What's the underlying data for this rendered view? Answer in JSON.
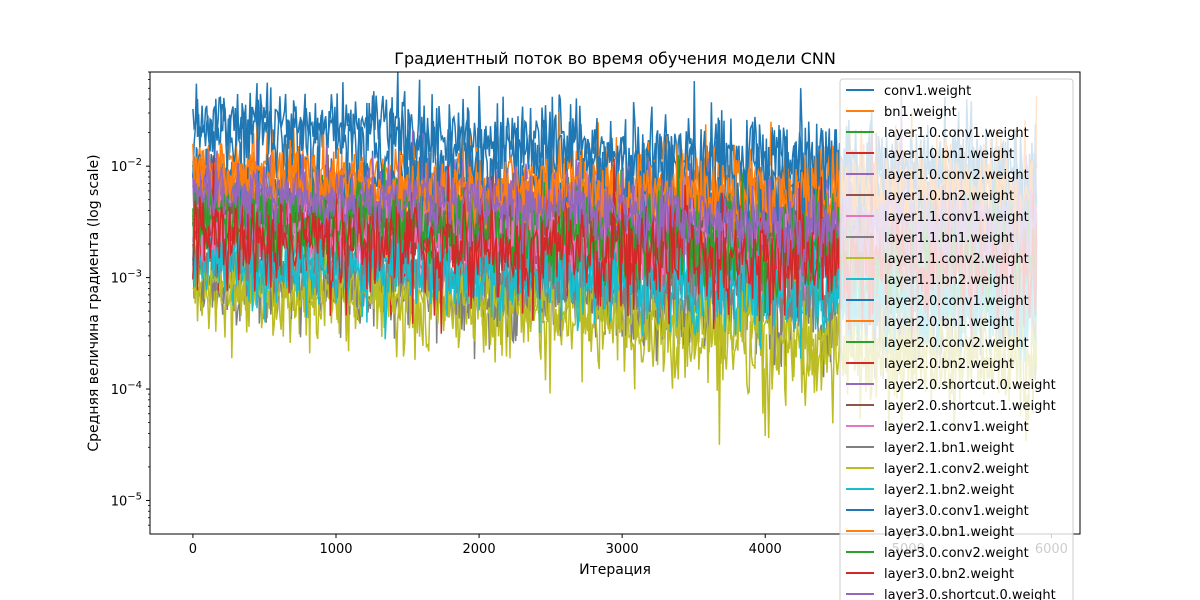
{
  "chart_data": {
    "type": "line",
    "title": "Градиентный поток во время обучения модели CNN",
    "xlabel": "Итерация",
    "ylabel": "Средняя величина градиента (log scale)",
    "x_ticks": [
      0,
      1000,
      2000,
      3000,
      4000,
      5000,
      6000
    ],
    "x_tick_labels": [
      "0",
      "1000",
      "2000",
      "3000",
      "4000",
      "5000",
      "6000"
    ],
    "xlim": [
      -300,
      6200
    ],
    "y_scale": "log",
    "ylim": [
      5e-06,
      0.07
    ],
    "y_ticks": [
      1e-05,
      0.0001,
      0.001,
      0.01
    ],
    "y_tick_labels": [
      {
        "base": "10",
        "exp": "−5"
      },
      {
        "base": "10",
        "exp": "−4"
      },
      {
        "base": "10",
        "exp": "−3"
      },
      {
        "base": "10",
        "exp": "−2"
      }
    ],
    "grid": false,
    "legend_placement": "upper right",
    "x": [
      0,
      500,
      1000,
      1500,
      2000,
      2500,
      3000,
      3500,
      4000,
      4500,
      5000,
      5500,
      5900
    ],
    "series": [
      {
        "name": "conv1.weight",
        "color": "#1f77b4",
        "values": [
          0.025,
          0.025,
          0.022,
          0.02,
          0.016,
          0.018,
          0.012,
          0.014,
          0.011,
          0.012,
          0.009,
          0.009,
          0.008
        ]
      },
      {
        "name": "bn1.weight",
        "color": "#ff7f0e",
        "values": [
          0.011,
          0.009,
          0.008,
          0.007,
          0.006,
          0.007,
          0.006,
          0.007,
          0.008,
          0.007,
          0.007,
          0.006,
          0.006
        ]
      },
      {
        "name": "layer1.0.conv1.weight",
        "color": "#2ca02c",
        "values": [
          0.004,
          0.0035,
          0.003,
          0.003,
          0.0025,
          0.0025,
          0.002,
          0.002,
          0.0018,
          0.0018,
          0.0016,
          0.0016,
          0.0015
        ]
      },
      {
        "name": "layer1.0.bn1.weight",
        "color": "#d62728",
        "values": [
          0.003,
          0.0028,
          0.0026,
          0.0025,
          0.0022,
          0.0022,
          0.002,
          0.002,
          0.0018,
          0.0018,
          0.0017,
          0.0017,
          0.0016
        ]
      },
      {
        "name": "layer1.0.conv2.weight",
        "color": "#9467bd",
        "values": [
          0.005,
          0.0048,
          0.0045,
          0.0045,
          0.004,
          0.0038,
          0.0032,
          0.003,
          0.0028,
          0.0027,
          0.0026,
          0.0025,
          0.0025
        ]
      },
      {
        "name": "layer1.0.bn2.weight",
        "color": "#8c564b",
        "values": [
          0.0035,
          0.0032,
          0.003,
          0.003,
          0.0028,
          0.0027,
          0.0022,
          0.0022,
          0.002,
          0.002,
          0.0019,
          0.0019,
          0.0018
        ]
      },
      {
        "name": "layer1.1.conv1.weight",
        "color": "#e377c2",
        "values": [
          0.003,
          0.0028,
          0.0026,
          0.0025,
          0.0023,
          0.0022,
          0.0019,
          0.0018,
          0.0017,
          0.0016,
          0.0016,
          0.0015,
          0.0015
        ]
      },
      {
        "name": "layer1.1.bn1.weight",
        "color": "#7f7f7f",
        "values": [
          0.0007,
          0.0008,
          0.0008,
          0.0008,
          0.0007,
          0.0007,
          0.0006,
          0.0006,
          0.0005,
          0.0005,
          0.0005,
          0.0005,
          0.0005
        ]
      },
      {
        "name": "layer1.1.conv2.weight",
        "color": "#bcbd22",
        "values": [
          0.0008,
          0.0007,
          0.00065,
          0.0006,
          0.0005,
          0.00045,
          0.0004,
          0.0003,
          0.00025,
          0.00022,
          0.0002,
          0.00018,
          0.00016
        ]
      },
      {
        "name": "layer1.1.bn2.weight",
        "color": "#17becf",
        "values": [
          0.0015,
          0.0014,
          0.0013,
          0.0013,
          0.0012,
          0.0011,
          0.0009,
          0.0008,
          0.0007,
          0.0007,
          0.0006,
          0.0006,
          0.0006
        ]
      },
      {
        "name": "layer2.0.conv1.weight",
        "color": "#1f77b4",
        "values": [
          0.008,
          0.007,
          0.007,
          0.006,
          0.006,
          0.005,
          0.005,
          0.005,
          0.004,
          0.004,
          0.004,
          0.004,
          0.004
        ]
      },
      {
        "name": "layer2.0.bn1.weight",
        "color": "#ff7f0e",
        "values": [
          0.006,
          0.0055,
          0.005,
          0.005,
          0.0045,
          0.0045,
          0.004,
          0.004,
          0.0035,
          0.0035,
          0.0033,
          0.0032,
          0.003
        ]
      },
      {
        "name": "layer2.0.conv2.weight",
        "color": "#2ca02c",
        "values": [
          0.0045,
          0.004,
          0.004,
          0.0038,
          0.0035,
          0.0032,
          0.003,
          0.003,
          0.0028,
          0.0027,
          0.0026,
          0.0025,
          0.0025
        ]
      },
      {
        "name": "layer2.0.bn2.weight",
        "color": "#d62728",
        "values": [
          0.0025,
          0.0024,
          0.0023,
          0.0022,
          0.002,
          0.002,
          0.0018,
          0.0018,
          0.0017,
          0.0016,
          0.0016,
          0.0015,
          0.0015
        ]
      },
      {
        "name": "layer2.0.shortcut.0.weight",
        "color": "#9467bd",
        "values": [
          0.0055,
          0.005,
          0.0048,
          0.0045,
          0.0042,
          0.004,
          0.0035,
          0.0033,
          0.003,
          0.003,
          0.0028,
          0.0028,
          0.0027
        ]
      },
      {
        "name": "layer2.0.shortcut.1.weight",
        "color": "#8c564b",
        "values": [
          0.003,
          0.0028,
          0.0027,
          0.0026,
          0.0024,
          0.0023,
          0.002,
          0.002,
          0.0019,
          0.0018,
          0.0018,
          0.0017,
          0.0017
        ]
      },
      {
        "name": "layer2.1.conv1.weight",
        "color": "#e377c2",
        "values": [
          0.0028,
          0.0026,
          0.0025,
          0.0024,
          0.0022,
          0.0021,
          0.0019,
          0.0018,
          0.0017,
          0.0016,
          0.0016,
          0.0015,
          0.0015
        ]
      },
      {
        "name": "layer2.1.bn1.weight",
        "color": "#7f7f7f",
        "values": [
          0.0013,
          0.0012,
          0.0011,
          0.0011,
          0.001,
          0.001,
          0.0009,
          0.0008,
          0.0008,
          0.0007,
          0.0007,
          0.0007,
          0.0007
        ]
      },
      {
        "name": "layer2.1.conv2.weight",
        "color": "#bcbd22",
        "values": [
          0.0009,
          0.0008,
          0.0007,
          0.00065,
          0.0006,
          0.0005,
          0.00045,
          0.00035,
          0.0003,
          0.00025,
          0.00022,
          0.0002,
          0.00018
        ]
      },
      {
        "name": "layer2.1.bn2.weight",
        "color": "#17becf",
        "values": [
          0.0014,
          0.0013,
          0.0012,
          0.0012,
          0.0011,
          0.001,
          0.0009,
          0.0008,
          0.0007,
          0.0007,
          0.0006,
          0.0006,
          0.0006
        ]
      },
      {
        "name": "layer3.0.conv1.weight",
        "color": "#1f77b4",
        "values": [
          0.02,
          0.02,
          0.018,
          0.016,
          0.013,
          0.014,
          0.01,
          0.011,
          0.009,
          0.009,
          0.008,
          0.008,
          0.007
        ]
      },
      {
        "name": "layer3.0.bn1.weight",
        "color": "#ff7f0e",
        "values": [
          0.009,
          0.008,
          0.007,
          0.006,
          0.0055,
          0.006,
          0.005,
          0.006,
          0.006,
          0.006,
          0.0055,
          0.005,
          0.005
        ]
      },
      {
        "name": "layer3.0.conv2.weight",
        "color": "#2ca02c",
        "values": [
          0.0035,
          0.0032,
          0.003,
          0.0028,
          0.0025,
          0.0024,
          0.002,
          0.002,
          0.0018,
          0.0017,
          0.0016,
          0.0016,
          0.0015
        ]
      },
      {
        "name": "layer3.0.bn2.weight",
        "color": "#d62728",
        "values": [
          0.0022,
          0.0021,
          0.002,
          0.002,
          0.0018,
          0.0018,
          0.0016,
          0.0016,
          0.0015,
          0.0014,
          0.0014,
          0.0013,
          0.0013
        ]
      },
      {
        "name": "layer3.0.shortcut.0.weight",
        "color": "#9467bd",
        "values": [
          0.006,
          0.0055,
          0.005,
          0.005,
          0.0045,
          0.0042,
          0.0037,
          0.0035,
          0.0032,
          0.003,
          0.003,
          0.0029,
          0.0028
        ]
      }
    ]
  }
}
